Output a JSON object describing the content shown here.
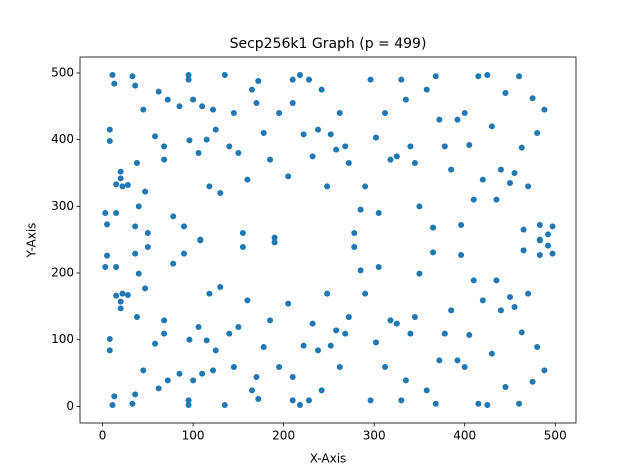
{
  "chart_data": {
    "type": "scatter",
    "title": "Secp256k1 Graph (p = 499)",
    "x_label": "X-Axis",
    "y_label": "Y-Axis",
    "color": "#1f77b4",
    "xlim": [
      -24.9,
      522.9
    ],
    "ylim": [
      -24.95,
      523.95
    ],
    "xticks": [
      0,
      100,
      200,
      300,
      400,
      500
    ],
    "yticks": [
      0,
      100,
      200,
      300,
      400,
      500
    ],
    "x": [
      3,
      3,
      5,
      5,
      8,
      8,
      8,
      8,
      11,
      11,
      13,
      13,
      15,
      15,
      15,
      15,
      20,
      20,
      20,
      20,
      22,
      22,
      28,
      28,
      33,
      33,
      36,
      36,
      36,
      36,
      38,
      38,
      40,
      40,
      45,
      45,
      47,
      47,
      50,
      50,
      58,
      58,
      62,
      62,
      68,
      68,
      68,
      68,
      72,
      72,
      78,
      78,
      85,
      85,
      90,
      90,
      95,
      95,
      95,
      95,
      96,
      96,
      100,
      100,
      106,
      106,
      108,
      108,
      110,
      110,
      115,
      115,
      118,
      118,
      122,
      122,
      125,
      125,
      130,
      130,
      135,
      135,
      140,
      140,
      145,
      145,
      150,
      150,
      155,
      155,
      160,
      160,
      165,
      165,
      170,
      170,
      172,
      172,
      178,
      178,
      185,
      185,
      190,
      190,
      195,
      195,
      205,
      205,
      210,
      210,
      210,
      210,
      218,
      218,
      222,
      222,
      228,
      228,
      232,
      232,
      238,
      238,
      242,
      242,
      248,
      248,
      252,
      252,
      258,
      258,
      262,
      262,
      268,
      268,
      272,
      272,
      278,
      278,
      285,
      285,
      290,
      290,
      296,
      296,
      302,
      302,
      305,
      305,
      312,
      312,
      318,
      318,
      325,
      325,
      330,
      330,
      335,
      335,
      340,
      340,
      345,
      345,
      350,
      350,
      358,
      358,
      365,
      365,
      368,
      368,
      372,
      372,
      378,
      378,
      385,
      385,
      392,
      392,
      396,
      396,
      400,
      400,
      405,
      405,
      410,
      410,
      415,
      415,
      420,
      420,
      425,
      425,
      430,
      430,
      435,
      435,
      440,
      440,
      445,
      445,
      450,
      450,
      455,
      455,
      460,
      460,
      463,
      463,
      465,
      465,
      470,
      470,
      475,
      475,
      480,
      480,
      483,
      483,
      483,
      483,
      488,
      488,
      492,
      492,
      497,
      497
    ],
    "y": [
      290,
      209,
      273,
      226,
      415,
      84,
      398,
      101,
      497,
      2,
      484,
      15,
      333,
      166,
      290,
      209,
      342,
      157,
      352,
      147,
      330,
      169,
      332,
      167,
      495,
      4,
      481,
      18,
      270,
      229,
      365,
      134,
      300,
      199,
      445,
      54,
      322,
      177,
      260,
      239,
      405,
      94,
      472,
      27,
      370,
      129,
      390,
      109,
      460,
      39,
      285,
      214,
      450,
      49,
      270,
      229,
      490,
      9,
      497,
      2,
      399,
      100,
      460,
      39,
      380,
      119,
      250,
      249,
      450,
      49,
      400,
      99,
      330,
      169,
      445,
      54,
      415,
      84,
      320,
      179,
      497,
      2,
      390,
      109,
      440,
      59,
      380,
      119,
      260,
      239,
      340,
      159,
      475,
      24,
      455,
      44,
      488,
      11,
      410,
      89,
      370,
      129,
      253,
      246,
      440,
      59,
      345,
      154,
      490,
      9,
      455,
      44,
      497,
      2,
      408,
      91,
      490,
      9,
      375,
      124,
      415,
      84,
      475,
      24,
      330,
      169,
      408,
      91,
      385,
      114,
      440,
      59,
      390,
      109,
      365,
      134,
      260,
      239,
      295,
      204,
      330,
      169,
      490,
      9,
      403,
      96,
      290,
      209,
      440,
      59,
      370,
      129,
      375,
      124,
      490,
      9,
      460,
      39,
      390,
      109,
      365,
      134,
      300,
      199,
      475,
      24,
      268,
      231,
      495,
      4,
      430,
      69,
      390,
      109,
      355,
      144,
      430,
      69,
      272,
      227,
      440,
      59,
      392,
      107,
      310,
      189,
      495,
      4,
      340,
      159,
      497,
      2,
      420,
      79,
      310,
      189,
      355,
      144,
      470,
      29,
      335,
      164,
      350,
      149,
      495,
      4,
      388,
      111,
      265,
      234,
      330,
      169,
      462,
      37,
      410,
      89,
      250,
      249,
      272,
      227,
      445,
      54,
      258,
      241,
      270,
      229
    ]
  }
}
